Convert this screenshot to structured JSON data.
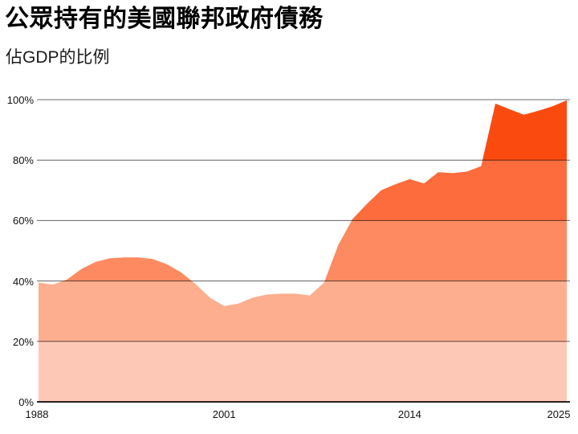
{
  "header": {
    "title": "公眾持有的美國聯邦政府債務",
    "subtitle": "佔GDP的比例"
  },
  "chart_data": {
    "type": "area",
    "title": "公眾持有的美國聯邦政府債務",
    "subtitle": "佔GDP的比例",
    "series_name": "debt-held-by-public-percent-gdp",
    "x": [
      1988,
      1989,
      1990,
      1991,
      1992,
      1993,
      1994,
      1995,
      1996,
      1997,
      1998,
      1999,
      2000,
      2001,
      2002,
      2003,
      2004,
      2005,
      2006,
      2007,
      2008,
      2009,
      2010,
      2011,
      2012,
      2013,
      2014,
      2015,
      2016,
      2017,
      2018,
      2019,
      2020,
      2021,
      2022,
      2023,
      2024,
      2025
    ],
    "values": [
      39.5,
      38.8,
      40.5,
      44.0,
      46.3,
      47.5,
      47.8,
      47.8,
      47.3,
      45.5,
      42.8,
      39.0,
      34.5,
      31.7,
      32.5,
      34.5,
      35.5,
      35.8,
      35.8,
      35.2,
      39.5,
      52.0,
      60.5,
      65.5,
      70.0,
      72.0,
      73.7,
      72.3,
      76.0,
      75.7,
      76.2,
      78.0,
      98.7,
      96.8,
      95.0,
      96.3,
      97.8,
      99.8
    ],
    "xlim": [
      1988,
      2025
    ],
    "ylim": [
      0,
      100
    ],
    "x_tick_years": [
      1988,
      2001,
      2014,
      2025
    ],
    "x_tick_labels": [
      "1988",
      "2001",
      "2014",
      "2025"
    ],
    "y_tick_values": [
      0,
      20,
      40,
      60,
      80,
      100
    ],
    "y_tick_labels": [
      "0%",
      "20%",
      "40%",
      "60%",
      "80%",
      "100%"
    ],
    "grid": true,
    "legend": "none",
    "band_colors": [
      {
        "range": [
          0,
          20
        ],
        "color": "#fec8b6"
      },
      {
        "range": [
          20,
          40
        ],
        "color": "#fdae8f"
      },
      {
        "range": [
          40,
          60
        ],
        "color": "#fd8a61"
      },
      {
        "range": [
          60,
          80
        ],
        "color": "#fd6c3c"
      },
      {
        "range": [
          80,
          100
        ],
        "color": "#fb4a10"
      }
    ],
    "gridline_colors": {
      "top": "#b5b5b5",
      "inner": "rgba(0,0,0,0.62)",
      "baseline": "rgba(0,0,0,0.85)"
    }
  }
}
